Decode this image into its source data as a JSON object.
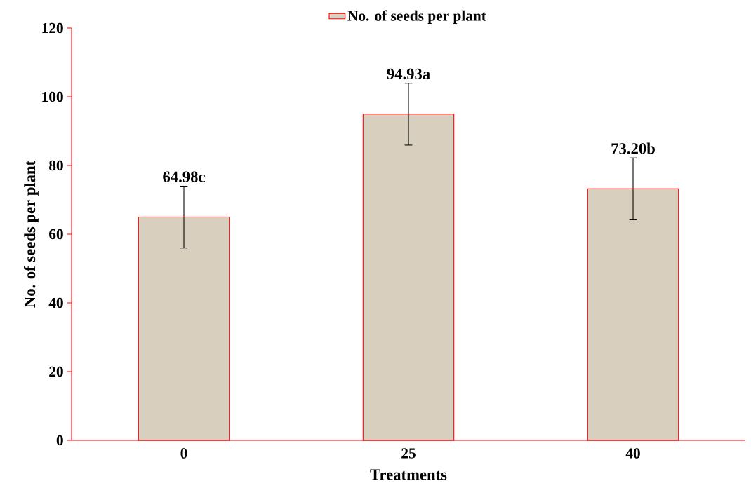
{
  "chart_data": {
    "type": "bar",
    "xlabel": "Treatments",
    "ylabel": "No. of seeds per plant",
    "categories": [
      "0",
      "25",
      "40"
    ],
    "series": [
      {
        "name": "No. of seeds per plant",
        "color": "#d8cfbe",
        "values": [
          64.98,
          94.93,
          73.2
        ],
        "errors": [
          9,
          9,
          9
        ],
        "value_labels": [
          "64.98c",
          "94.93a",
          "73.20b"
        ]
      }
    ],
    "ylim": [
      0,
      120
    ],
    "yticks": [
      0,
      20,
      40,
      60,
      80,
      100,
      120
    ],
    "grid": false,
    "legend": "top"
  }
}
